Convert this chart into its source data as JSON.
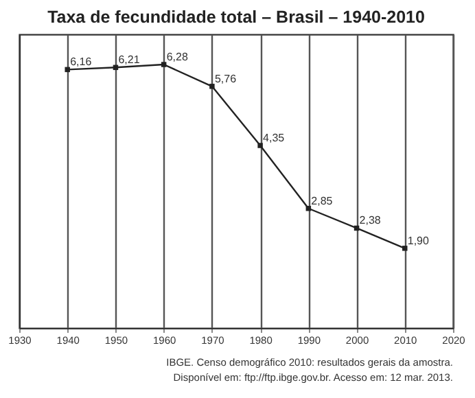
{
  "chart_data": {
    "type": "line",
    "title": "Taxa de fecundidade total – Brasil – 1940-2010",
    "x": [
      1940,
      1950,
      1960,
      1970,
      1980,
      1990,
      2000,
      2010
    ],
    "series": [
      {
        "color": "#222222",
        "values": [
          6.16,
          6.21,
          6.28,
          5.76,
          4.35,
          2.85,
          2.38,
          1.9
        ],
        "value_labels": [
          "6,16",
          "6,21",
          "6,28",
          "5,76",
          "4,35",
          "2,85",
          "2,38",
          "1,90"
        ]
      }
    ],
    "xlim": [
      1930,
      2020
    ],
    "xticks": [
      1930,
      1940,
      1950,
      1960,
      1970,
      1980,
      1990,
      2000,
      2010,
      2020
    ],
    "ylim": [
      0,
      7
    ],
    "tick_labels": "x",
    "grid": "x",
    "marker": "square",
    "line_style": "solid",
    "annotations": [
      "IBGE. Censo demográfico 2010: resultados gerais da amostra.",
      "Disponível em: ftp://ftp.ibge.gov.br. Acesso em: 12 mar. 2013."
    ]
  }
}
